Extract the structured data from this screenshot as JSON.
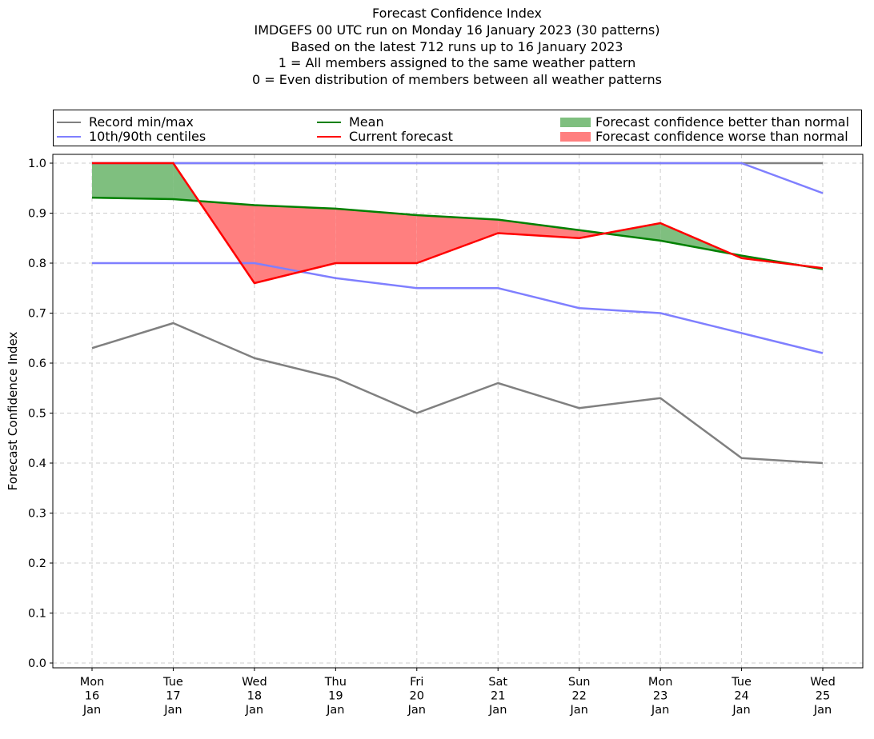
{
  "chart_data": {
    "type": "line",
    "title": "Forecast Confidence Index",
    "subtitle_lines": [
      "IMDGEFS 00 UTC run on Monday 16 January 2023 (30 patterns)",
      "Based on the latest 712 runs up to 16 January 2023",
      "1 = All members assigned to the same weather pattern",
      "0 = Even distribution of members between all weather patterns"
    ],
    "ylabel": "Forecast Confidence Index",
    "xlabel": "",
    "ylim": [
      0,
      1
    ],
    "yticks": [
      "0.0",
      "0.1",
      "0.2",
      "0.3",
      "0.4",
      "0.5",
      "0.6",
      "0.7",
      "0.8",
      "0.9",
      "1.0"
    ],
    "grid": true,
    "legend_position": "top",
    "categories": [
      [
        "Mon",
        "16",
        "Jan"
      ],
      [
        "Tue",
        "17",
        "Jan"
      ],
      [
        "Wed",
        "18",
        "Jan"
      ],
      [
        "Thu",
        "19",
        "Jan"
      ],
      [
        "Fri",
        "20",
        "Jan"
      ],
      [
        "Sat",
        "21",
        "Jan"
      ],
      [
        "Sun",
        "22",
        "Jan"
      ],
      [
        "Mon",
        "23",
        "Jan"
      ],
      [
        "Tue",
        "24",
        "Jan"
      ],
      [
        "Wed",
        "25",
        "Jan"
      ]
    ],
    "series": [
      {
        "name": "Record min",
        "legend_group": "record",
        "color": "#808080",
        "values": [
          0.63,
          0.68,
          0.61,
          0.57,
          0.5,
          0.56,
          0.51,
          0.53,
          0.41,
          0.4
        ]
      },
      {
        "name": "Record max",
        "legend_group": "record",
        "color": "#808080",
        "values": [
          1.0,
          1.0,
          1.0,
          1.0,
          1.0,
          1.0,
          1.0,
          1.0,
          1.0,
          1.0
        ]
      },
      {
        "name": "10th centile",
        "legend_group": "centiles",
        "color": "#7f7fff",
        "values": [
          0.8,
          0.8,
          0.8,
          0.77,
          0.75,
          0.75,
          0.71,
          0.7,
          0.66,
          0.62
        ]
      },
      {
        "name": "90th centile",
        "legend_group": "centiles",
        "color": "#7f7fff",
        "values": [
          1.0,
          1.0,
          1.0,
          1.0,
          1.0,
          1.0,
          1.0,
          1.0,
          1.0,
          0.94
        ]
      },
      {
        "name": "Mean",
        "legend_group": "mean",
        "color": "#008000",
        "values": [
          0.931,
          0.928,
          0.916,
          0.909,
          0.896,
          0.887,
          0.866,
          0.845,
          0.815,
          0.788
        ]
      },
      {
        "name": "Current forecast",
        "legend_group": "current",
        "color": "#ff0000",
        "values": [
          1.0,
          1.0,
          0.76,
          0.8,
          0.8,
          0.86,
          0.85,
          0.88,
          0.81,
          0.79
        ]
      }
    ],
    "fill_better_color": "#7fbf7f",
    "fill_worse_color": "#ff7f7f"
  },
  "legend": {
    "record": "Record min/max",
    "centiles": "10th/90th centiles",
    "mean": "Mean",
    "current": "Current forecast",
    "better": "Forecast confidence better than normal",
    "worse": "Forecast confidence worse than normal"
  }
}
